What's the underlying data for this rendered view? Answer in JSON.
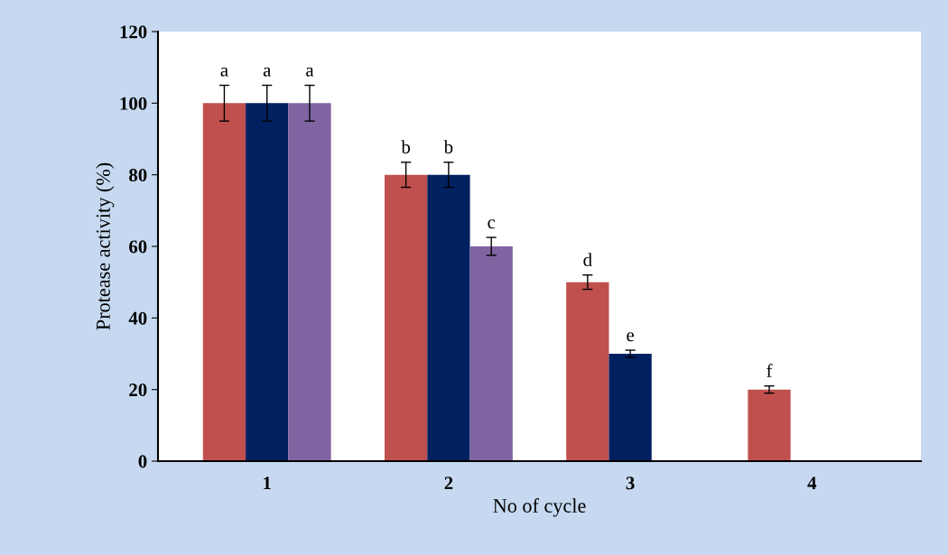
{
  "chart_data": {
    "type": "bar",
    "xlabel": "No of cycle",
    "ylabel": "Protease activity (%)",
    "categories": [
      "1",
      "2",
      "3",
      "4"
    ],
    "series": [
      {
        "color": "#c0504d",
        "values": [
          100,
          80,
          50,
          20
        ],
        "errors": [
          5,
          3.5,
          2,
          1
        ],
        "value_labels": [
          "a",
          "b",
          "d",
          "f"
        ]
      },
      {
        "color": "#002060",
        "values": [
          100,
          80,
          30,
          null
        ],
        "errors": [
          5,
          3.5,
          1,
          null
        ],
        "value_labels": [
          "a",
          "b",
          "e",
          null
        ]
      },
      {
        "color": "#8064a2",
        "values": [
          100,
          60,
          null,
          null
        ],
        "errors": [
          5,
          2.5,
          null,
          null
        ],
        "value_labels": [
          "a",
          "c",
          null,
          null
        ]
      }
    ],
    "ylim": [
      0,
      120
    ],
    "yticks": [
      0,
      20,
      40,
      60,
      80,
      100,
      120
    ],
    "grid": false,
    "legend": false
  }
}
